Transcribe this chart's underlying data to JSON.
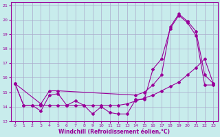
{
  "xlabel": "Windchill (Refroidissement éolien,°C)",
  "bg_color": "#c8ecec",
  "line_color": "#990099",
  "grid_color": "#aaaacc",
  "xlim": [
    -0.5,
    23.5
  ],
  "ylim": [
    13,
    21.2
  ],
  "xticks": [
    0,
    1,
    2,
    3,
    4,
    5,
    6,
    7,
    8,
    9,
    10,
    11,
    12,
    13,
    14,
    15,
    16,
    17,
    18,
    19,
    20,
    21,
    22,
    23
  ],
  "yticks": [
    13,
    14,
    15,
    16,
    17,
    18,
    19,
    20,
    21
  ],
  "line1_x": [
    0,
    1,
    2,
    3,
    4,
    5,
    6,
    7,
    8,
    9,
    10,
    11,
    12,
    13,
    14,
    15,
    16,
    17,
    18,
    19,
    20,
    21,
    22,
    23
  ],
  "line1_y": [
    15.6,
    14.1,
    14.1,
    13.7,
    14.8,
    14.9,
    14.1,
    14.4,
    14.1,
    13.5,
    14.0,
    13.6,
    13.5,
    13.5,
    14.5,
    14.5,
    16.6,
    17.3,
    19.4,
    20.3,
    19.8,
    18.9,
    15.5,
    15.5
  ],
  "line2_x": [
    0,
    3,
    4,
    5,
    14,
    15,
    16,
    17,
    18,
    19,
    20,
    21,
    22,
    23
  ],
  "line2_y": [
    15.6,
    14.2,
    15.1,
    15.1,
    14.8,
    15.0,
    15.5,
    16.2,
    19.5,
    20.4,
    19.9,
    19.2,
    16.2,
    15.6
  ],
  "line3_x": [
    0,
    1,
    2,
    3,
    4,
    5,
    6,
    7,
    8,
    9,
    10,
    11,
    12,
    13,
    14,
    15,
    16,
    17,
    18,
    19,
    20,
    21,
    22,
    23
  ],
  "line3_y": [
    15.6,
    14.1,
    14.1,
    14.1,
    14.1,
    14.1,
    14.1,
    14.1,
    14.1,
    14.1,
    14.1,
    14.1,
    14.1,
    14.2,
    14.4,
    14.6,
    14.8,
    15.1,
    15.4,
    15.7,
    16.2,
    16.7,
    17.3,
    15.6
  ]
}
